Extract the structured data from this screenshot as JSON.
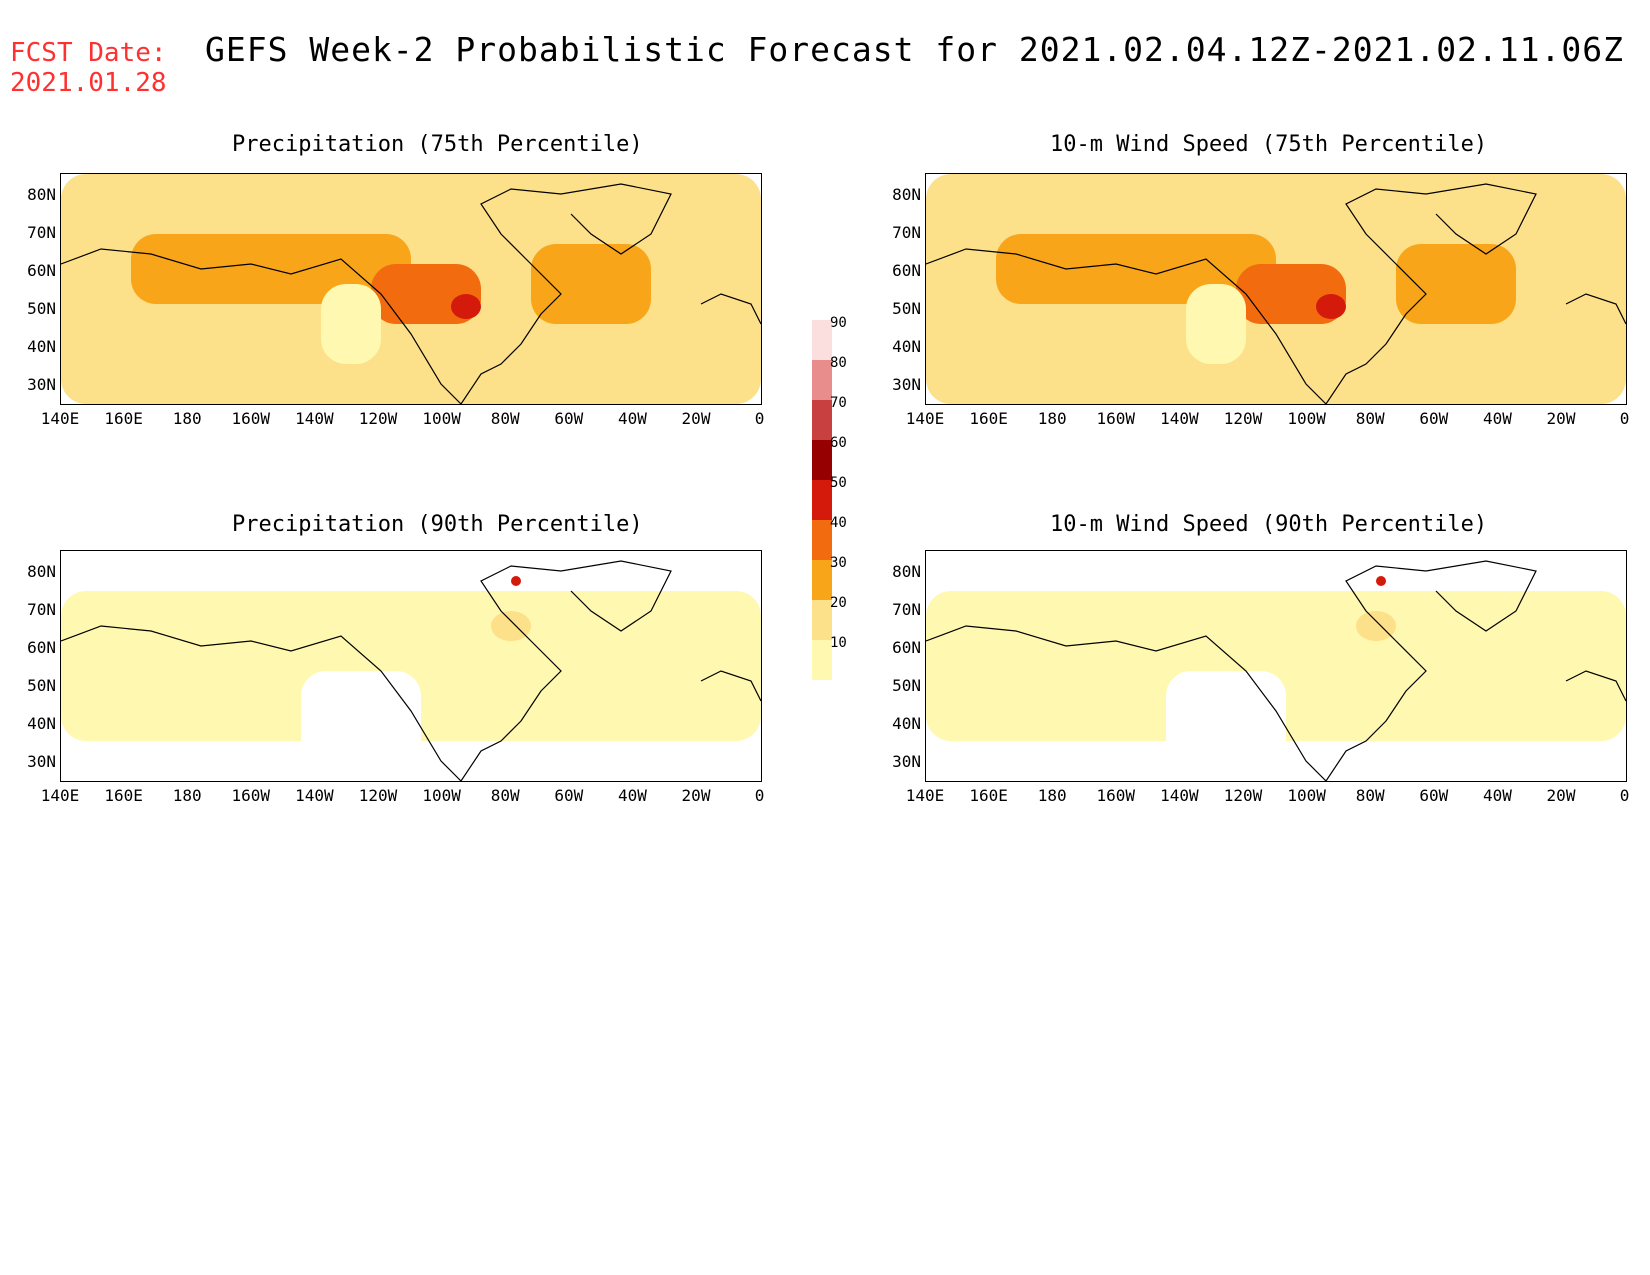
{
  "header": {
    "fcst_label": "FCST Date:",
    "fcst_date": "2021.01.28",
    "title": "GEFS Week-2 Probabilistic Forecast for 2021.02.04.12Z-2021.02.11.06Z"
  },
  "panels": [
    {
      "title": "Precipitation (75th Percentile)",
      "intensity": "high"
    },
    {
      "title": "10-m Wind Speed (75th Percentile)",
      "intensity": "high"
    },
    {
      "title": "Precipitation (90th Percentile)",
      "intensity": "low"
    },
    {
      "title": "10-m Wind Speed (90th Percentile)",
      "intensity": "low"
    }
  ],
  "axes": {
    "lat_labels": [
      "80N",
      "70N",
      "60N",
      "50N",
      "40N",
      "30N"
    ],
    "lon_labels": [
      "140E",
      "160E",
      "180",
      "160W",
      "140W",
      "120W",
      "100W",
      "80W",
      "60W",
      "40W",
      "20W",
      "0"
    ]
  },
  "colorbar": {
    "levels": [
      "10",
      "20",
      "30",
      "40",
      "50",
      "60",
      "70",
      "80",
      "90"
    ],
    "colors": [
      "#fff8b0",
      "#fde08a",
      "#f9a51a",
      "#f26b0f",
      "#d41a0a",
      "#960000",
      "#c84040",
      "#e88c8c",
      "#fbdede"
    ]
  }
}
